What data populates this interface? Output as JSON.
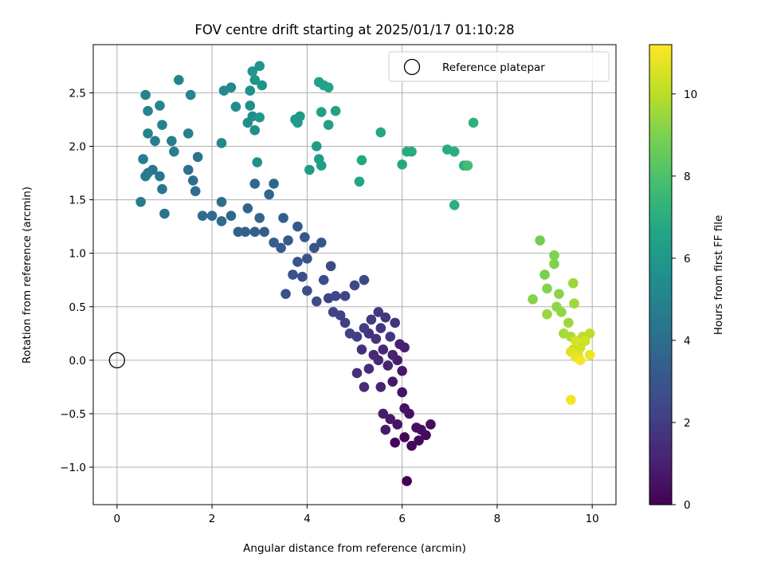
{
  "chart_data": {
    "type": "scatter",
    "title": "FOV centre drift starting at 2025/01/17 01:10:28",
    "xlabel": "Angular distance from reference (arcmin)",
    "ylabel": "Rotation from reference (arcmin)",
    "xlim": [
      -0.5,
      10.5
    ],
    "ylim": [
      -1.35,
      2.95
    ],
    "xticks": [
      0,
      2,
      4,
      6,
      8,
      10
    ],
    "xtick_labels": [
      "0",
      "2",
      "4",
      "6",
      "8",
      "10"
    ],
    "yticks": [
      -1.0,
      -0.5,
      0.0,
      0.5,
      1.0,
      1.5,
      2.0,
      2.5
    ],
    "ytick_labels": [
      "−1.0",
      "−0.5",
      "0.0",
      "0.5",
      "1.0",
      "1.5",
      "2.0",
      "2.5"
    ],
    "grid": true,
    "legend": {
      "placement": "top-right",
      "entries": [
        "Reference platepar"
      ]
    },
    "reference_point": {
      "x": 0,
      "y": 0
    },
    "colorbar": {
      "label": "Hours from first FF file",
      "range": [
        0,
        11.2
      ],
      "ticks": [
        0,
        2,
        4,
        6,
        8,
        10
      ],
      "tick_labels": [
        "0",
        "2",
        "4",
        "6",
        "8",
        "10"
      ],
      "colormap": "viridis"
    },
    "points": [
      [
        6.1,
        -1.13,
        0.05
      ],
      [
        5.85,
        -0.77,
        0.1
      ],
      [
        6.05,
        -0.72,
        0.15
      ],
      [
        6.2,
        -0.8,
        0.2
      ],
      [
        6.35,
        -0.75,
        0.25
      ],
      [
        6.5,
        -0.7,
        0.3
      ],
      [
        6.6,
        -0.6,
        0.35
      ],
      [
        6.4,
        -0.65,
        0.4
      ],
      [
        6.3,
        -0.63,
        0.45
      ],
      [
        6.15,
        -0.5,
        0.5
      ],
      [
        6.05,
        -0.45,
        0.55
      ],
      [
        6.0,
        -0.3,
        0.6
      ],
      [
        5.9,
        -0.6,
        0.65
      ],
      [
        6.0,
        -0.1,
        0.7
      ],
      [
        5.8,
        -0.2,
        0.75
      ],
      [
        5.75,
        -0.55,
        0.8
      ],
      [
        5.65,
        -0.65,
        0.85
      ],
      [
        5.6,
        -0.5,
        0.9
      ],
      [
        5.9,
        0.0,
        0.95
      ],
      [
        6.05,
        0.12,
        1.0
      ],
      [
        5.95,
        0.15,
        1.05
      ],
      [
        5.8,
        0.05,
        1.1
      ],
      [
        5.7,
        -0.05,
        1.15
      ],
      [
        5.55,
        -0.25,
        1.2
      ],
      [
        5.6,
        0.1,
        1.25
      ],
      [
        5.5,
        0.0,
        1.3
      ],
      [
        5.4,
        0.05,
        1.35
      ],
      [
        5.3,
        -0.08,
        1.4
      ],
      [
        5.2,
        -0.25,
        1.45
      ],
      [
        5.05,
        -0.12,
        1.5
      ],
      [
        5.15,
        0.1,
        1.55
      ],
      [
        5.3,
        0.25,
        1.6
      ],
      [
        5.45,
        0.2,
        1.65
      ],
      [
        5.55,
        0.3,
        1.7
      ],
      [
        5.75,
        0.22,
        1.75
      ],
      [
        5.85,
        0.35,
        1.8
      ],
      [
        5.65,
        0.4,
        1.85
      ],
      [
        5.5,
        0.45,
        1.9
      ],
      [
        5.35,
        0.38,
        1.95
      ],
      [
        5.2,
        0.3,
        2.0
      ],
      [
        5.05,
        0.22,
        2.05
      ],
      [
        4.9,
        0.25,
        2.1
      ],
      [
        4.8,
        0.35,
        2.15
      ],
      [
        4.7,
        0.42,
        2.2
      ],
      [
        4.55,
        0.45,
        2.25
      ],
      [
        4.45,
        0.58,
        2.3
      ],
      [
        4.6,
        0.6,
        2.35
      ],
      [
        4.8,
        0.6,
        2.4
      ],
      [
        5.0,
        0.7,
        2.45
      ],
      [
        5.2,
        0.75,
        2.5
      ],
      [
        4.5,
        0.88,
        2.55
      ],
      [
        4.35,
        0.75,
        2.6
      ],
      [
        4.2,
        0.55,
        2.65
      ],
      [
        4.0,
        0.65,
        2.7
      ],
      [
        3.9,
        0.78,
        2.75
      ],
      [
        3.7,
        0.8,
        2.8
      ],
      [
        3.55,
        0.62,
        2.85
      ],
      [
        3.8,
        0.92,
        2.9
      ],
      [
        4.0,
        0.95,
        2.95
      ],
      [
        4.15,
        1.05,
        3.0
      ],
      [
        4.3,
        1.1,
        3.05
      ],
      [
        3.95,
        1.15,
        3.1
      ],
      [
        3.8,
        1.25,
        3.15
      ],
      [
        3.6,
        1.12,
        3.2
      ],
      [
        3.45,
        1.05,
        3.25
      ],
      [
        3.3,
        1.1,
        3.3
      ],
      [
        3.5,
        1.33,
        3.35
      ],
      [
        3.1,
        1.2,
        3.4
      ],
      [
        2.9,
        1.2,
        3.45
      ],
      [
        2.7,
        1.2,
        3.5
      ],
      [
        2.55,
        1.2,
        3.55
      ],
      [
        2.75,
        1.42,
        3.6
      ],
      [
        3.0,
        1.33,
        3.65
      ],
      [
        3.2,
        1.55,
        3.7
      ],
      [
        3.3,
        1.65,
        3.75
      ],
      [
        2.9,
        1.65,
        3.8
      ],
      [
        2.4,
        1.35,
        3.85
      ],
      [
        2.2,
        1.3,
        3.9
      ],
      [
        2.0,
        1.35,
        3.95
      ],
      [
        1.8,
        1.35,
        4.0
      ],
      [
        2.2,
        1.48,
        4.05
      ],
      [
        1.65,
        1.58,
        4.1
      ],
      [
        1.6,
        1.68,
        4.15
      ],
      [
        1.5,
        1.78,
        4.2
      ],
      [
        1.7,
        1.9,
        4.25
      ],
      [
        1.0,
        1.37,
        4.3
      ],
      [
        0.95,
        1.6,
        4.35
      ],
      [
        0.9,
        1.72,
        4.4
      ],
      [
        0.75,
        1.78,
        4.45
      ],
      [
        0.65,
        1.75,
        4.5
      ],
      [
        0.6,
        1.72,
        4.55
      ],
      [
        0.55,
        1.88,
        4.6
      ],
      [
        0.5,
        1.48,
        4.65
      ],
      [
        0.8,
        2.05,
        4.7
      ],
      [
        1.15,
        2.05,
        4.75
      ],
      [
        1.2,
        1.95,
        4.8
      ],
      [
        1.5,
        2.12,
        4.85
      ],
      [
        0.65,
        2.12,
        4.9
      ],
      [
        0.95,
        2.2,
        4.95
      ],
      [
        0.65,
        2.33,
        5.0
      ],
      [
        0.6,
        2.48,
        5.05
      ],
      [
        0.9,
        2.38,
        5.1
      ],
      [
        1.3,
        2.62,
        5.15
      ],
      [
        1.55,
        2.48,
        5.2
      ],
      [
        2.2,
        2.03,
        5.25
      ],
      [
        2.25,
        2.52,
        5.3
      ],
      [
        2.4,
        2.55,
        5.35
      ],
      [
        2.5,
        2.37,
        5.4
      ],
      [
        2.8,
        2.38,
        5.45
      ],
      [
        2.85,
        2.28,
        5.5
      ],
      [
        2.75,
        2.22,
        5.55
      ],
      [
        2.9,
        2.15,
        5.6
      ],
      [
        2.95,
        1.85,
        5.65
      ],
      [
        2.8,
        2.52,
        5.7
      ],
      [
        2.9,
        2.62,
        5.75
      ],
      [
        3.0,
        2.75,
        5.8
      ],
      [
        3.05,
        2.57,
        5.85
      ],
      [
        2.85,
        2.7,
        5.9
      ],
      [
        3.0,
        2.27,
        5.95
      ],
      [
        3.75,
        2.25,
        6.0
      ],
      [
        3.85,
        2.28,
        6.05
      ],
      [
        3.8,
        2.22,
        6.1
      ],
      [
        4.05,
        1.78,
        6.15
      ],
      [
        4.25,
        1.88,
        6.2
      ],
      [
        4.3,
        1.82,
        6.25
      ],
      [
        4.2,
        2.0,
        6.3
      ],
      [
        4.3,
        2.32,
        6.35
      ],
      [
        4.45,
        2.2,
        6.4
      ],
      [
        4.6,
        2.33,
        6.45
      ],
      [
        4.25,
        2.6,
        6.5
      ],
      [
        4.35,
        2.57,
        6.55
      ],
      [
        4.45,
        2.55,
        6.6
      ],
      [
        5.1,
        1.67,
        6.65
      ],
      [
        5.15,
        1.87,
        6.7
      ],
      [
        5.55,
        2.13,
        6.75
      ],
      [
        6.0,
        1.83,
        6.8
      ],
      [
        6.1,
        1.95,
        6.85
      ],
      [
        6.2,
        1.95,
        6.9
      ],
      [
        6.95,
        1.97,
        6.95
      ],
      [
        7.1,
        1.95,
        7.0
      ],
      [
        7.1,
        1.45,
        7.05
      ],
      [
        7.3,
        1.82,
        7.1
      ],
      [
        7.35,
        1.82,
        7.15
      ],
      [
        7.5,
        2.22,
        7.2
      ],
      [
        7.38,
        1.82,
        7.8
      ],
      [
        8.9,
        1.12,
        8.8
      ],
      [
        9.0,
        0.8,
        8.9
      ],
      [
        9.2,
        0.98,
        9.0
      ],
      [
        9.2,
        0.9,
        9.05
      ],
      [
        9.05,
        0.67,
        9.1
      ],
      [
        8.75,
        0.57,
        9.15
      ],
      [
        9.3,
        0.62,
        9.2
      ],
      [
        9.25,
        0.5,
        9.3
      ],
      [
        9.35,
        0.45,
        9.35
      ],
      [
        9.05,
        0.43,
        9.4
      ],
      [
        9.6,
        0.72,
        9.5
      ],
      [
        9.5,
        0.35,
        9.55
      ],
      [
        9.62,
        0.53,
        9.6
      ],
      [
        9.4,
        0.25,
        9.7
      ],
      [
        9.55,
        0.22,
        9.8
      ],
      [
        9.7,
        0.18,
        9.9
      ],
      [
        9.8,
        0.22,
        10.0
      ],
      [
        9.95,
        0.25,
        10.1
      ],
      [
        9.6,
        0.1,
        10.2
      ],
      [
        9.75,
        0.12,
        10.3
      ],
      [
        9.85,
        0.18,
        10.4
      ],
      [
        9.65,
        0.18,
        10.5
      ],
      [
        9.7,
        0.05,
        10.6
      ],
      [
        9.55,
        0.08,
        10.7
      ],
      [
        9.65,
        0.03,
        10.8
      ],
      [
        9.95,
        0.05,
        10.9
      ],
      [
        9.55,
        -0.37,
        11.0
      ],
      [
        9.75,
        0.0,
        11.1
      ]
    ]
  }
}
